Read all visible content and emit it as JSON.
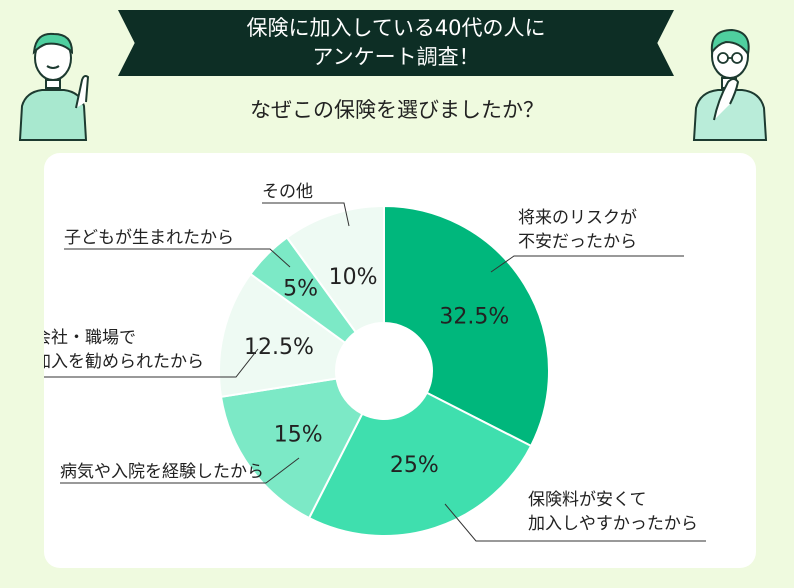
{
  "header": {
    "title_line1": "保険に加入している40代の人に",
    "title_line2": "アンケート調査！",
    "question": "なぜこの保険を選びましたか？"
  },
  "colors": {
    "background": "#effadf",
    "banner": "#0d2e25",
    "slice_1": "#00b77c",
    "slice_2": "#3fdfae",
    "slice_3": "#7ce9c6",
    "slice_4": "#eefaf3",
    "slice_5": "#7ce9c6",
    "slice_6": "#eefaf3"
  },
  "chart_data": {
    "type": "pie",
    "donut": true,
    "legend": "none",
    "slices": [
      {
        "label": "将来のリスクが\n不安だったから",
        "value": 32.5,
        "value_label": "32.5%"
      },
      {
        "label": "保険料が安くて\n加入しやすかったから",
        "value": 25,
        "value_label": "25%"
      },
      {
        "label": "病気や入院を経験したから",
        "value": 15,
        "value_label": "15%"
      },
      {
        "label": "会社・職場で\n加入を勧められたから",
        "value": 12.5,
        "value_label": "12.5%"
      },
      {
        "label": "子どもが生まれたから",
        "value": 5,
        "value_label": "5%"
      },
      {
        "label": "その他",
        "value": 10,
        "value_label": "10%"
      }
    ]
  }
}
